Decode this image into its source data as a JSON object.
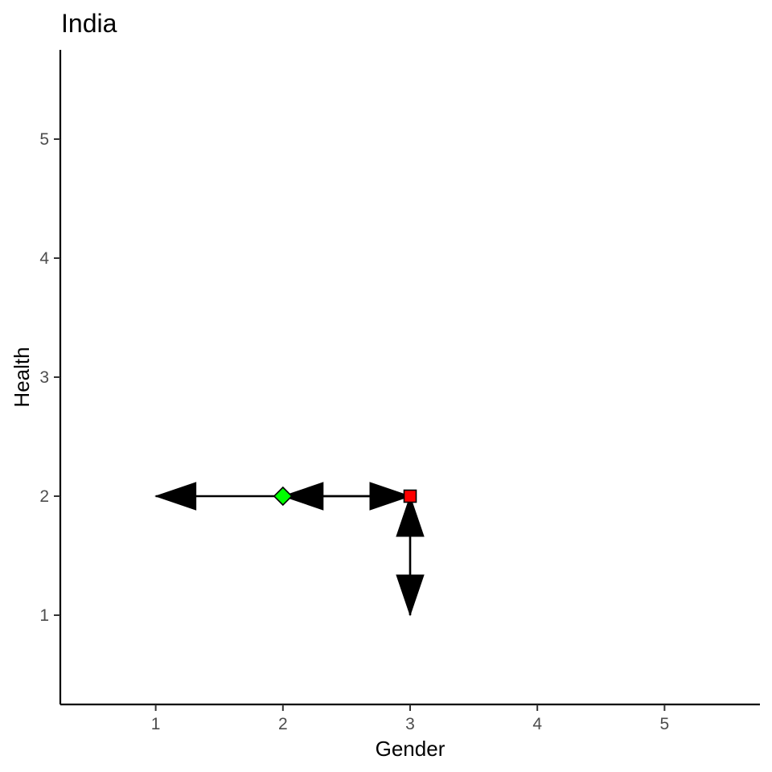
{
  "chart_data": {
    "type": "scatter",
    "title": "India",
    "xlabel": "Gender",
    "ylabel": "Health",
    "xlim": [
      0.25,
      5.75
    ],
    "ylim": [
      0.25,
      5.75
    ],
    "x_ticks": [
      "1",
      "2",
      "3",
      "4",
      "5"
    ],
    "y_ticks": [
      "1",
      "2",
      "3",
      "4",
      "5"
    ],
    "grid": false,
    "legend": "none",
    "points": [
      {
        "x": 2,
        "y": 2,
        "shape": "diamond",
        "color": "#00ff00"
      },
      {
        "x": 3,
        "y": 2,
        "shape": "square",
        "color": "#ff0000"
      }
    ],
    "arrows": [
      {
        "from": [
          2,
          2
        ],
        "to": [
          1,
          2
        ]
      },
      {
        "from": [
          3,
          2
        ],
        "to": [
          2,
          2
        ]
      },
      {
        "from": [
          2,
          2
        ],
        "to": [
          3,
          2
        ]
      },
      {
        "from": [
          3,
          2
        ],
        "to": [
          3,
          1
        ]
      },
      {
        "from": [
          3,
          1
        ],
        "to": [
          3,
          2
        ]
      }
    ],
    "colors": {
      "axis": "#000000",
      "tick_label": "#4d4d4d",
      "arrow": "#000000",
      "marker_outline": "#000000"
    }
  }
}
